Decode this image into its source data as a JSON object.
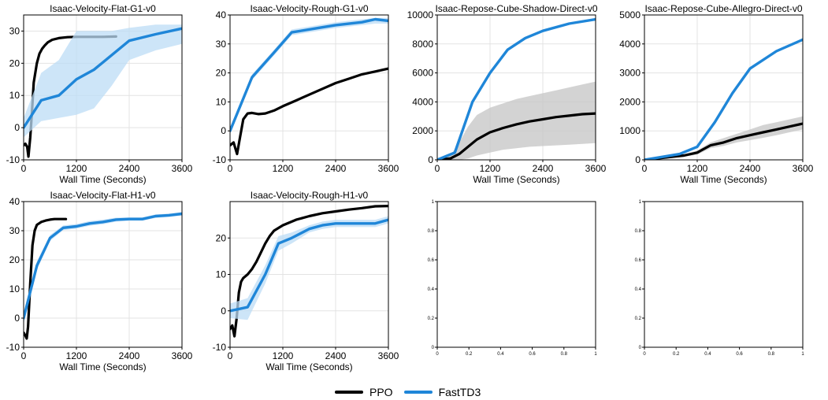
{
  "colors": {
    "ppo": "#000000",
    "fasttd3": "#1f86d8",
    "fasttd3_band": "#bcdcf5",
    "ppo_band": "#c8c8c8",
    "grid": "#e3e3e3"
  },
  "legend": [
    {
      "label": "PPO",
      "color": "#000000"
    },
    {
      "label": "FastTD3",
      "color": "#1f86d8"
    }
  ],
  "chart_data": [
    {
      "type": "line",
      "title": "Isaac-Velocity-Flat-G1-v0",
      "xlabel": "Wall Time (Seconds)",
      "xlim": [
        0,
        3600
      ],
      "ylim": [
        -10,
        35
      ],
      "xticks": [
        0,
        1200,
        2400,
        3600
      ],
      "yticks": [
        -10,
        0,
        10,
        20,
        30
      ],
      "series": [
        {
          "name": "PPO",
          "x": [
            0,
            40,
            80,
            110,
            150,
            190,
            230,
            300,
            360,
            420,
            480,
            550,
            650,
            800,
            1000,
            1200,
            1500,
            1800,
            2100
          ],
          "y": [
            -5.5,
            -5,
            -6,
            -9,
            -3,
            5,
            14,
            20,
            23,
            24.5,
            25.5,
            26.5,
            27.3,
            27.8,
            28.1,
            28.2,
            28.2,
            28.2,
            28.3
          ],
          "band_upper": [],
          "band_lower": []
        },
        {
          "name": "FastTD3",
          "x": [
            0,
            400,
            800,
            1200,
            1600,
            2000,
            2400,
            3000,
            3600
          ],
          "y": [
            0,
            8.5,
            10,
            15,
            18,
            22.5,
            27,
            29,
            30.8
          ],
          "band_upper": [
            3,
            17,
            21,
            30,
            30,
            30,
            31,
            32,
            32
          ],
          "band_lower": [
            -3,
            2,
            3,
            4,
            6,
            13,
            21,
            24,
            26
          ]
        }
      ]
    },
    {
      "type": "line",
      "title": "Isaac-Velocity-Rough-G1-v0",
      "xlabel": "",
      "xlim": [
        0,
        3600
      ],
      "ylim": [
        -10,
        40
      ],
      "xticks": [
        0,
        1200,
        2400,
        3600
      ],
      "yticks": [
        -10,
        0,
        10,
        20,
        30,
        40
      ],
      "series": [
        {
          "name": "PPO",
          "x": [
            0,
            80,
            160,
            230,
            300,
            400,
            500,
            650,
            800,
            1000,
            1200,
            1500,
            1800,
            2100,
            2400,
            2700,
            3000,
            3300,
            3600
          ],
          "y": [
            -5,
            -4,
            -8,
            -2,
            4,
            6,
            6.2,
            5.8,
            6,
            7,
            8.5,
            10.5,
            12.5,
            14.5,
            16.5,
            18,
            19.5,
            20.5,
            21.5
          ],
          "band_upper": [],
          "band_lower": []
        },
        {
          "name": "FastTD3",
          "x": [
            0,
            500,
            1000,
            1400,
            2000,
            2400,
            3000,
            3300,
            3600
          ],
          "y": [
            0,
            18.5,
            27,
            34,
            35.5,
            36.5,
            37.5,
            38.5,
            38
          ],
          "band_upper": [
            1,
            19.5,
            28,
            35,
            36.5,
            37.5,
            38.5,
            39,
            39
          ],
          "band_lower": [
            -1,
            17.5,
            26,
            33,
            34.5,
            35.5,
            36.5,
            37,
            37
          ]
        }
      ]
    },
    {
      "type": "line",
      "title": "Isaac-Repose-Cube-Shadow-Direct-v0",
      "xlabel": "Wall Time (Seconds)",
      "xlim": [
        0,
        3600
      ],
      "ylim": [
        0,
        10000
      ],
      "xticks": [
        0,
        1200,
        2400,
        3600
      ],
      "yticks": [
        0,
        2000,
        4000,
        6000,
        8000,
        10000
      ],
      "series": [
        {
          "name": "PPO",
          "x": [
            0,
            300,
            500,
            700,
            900,
            1200,
            1500,
            1800,
            2100,
            2400,
            2700,
            3000,
            3300,
            3600
          ],
          "y": [
            0,
            100,
            400,
            900,
            1400,
            1900,
            2200,
            2450,
            2650,
            2800,
            2950,
            3050,
            3150,
            3200
          ],
          "band_upper": [
            0,
            300,
            1200,
            2300,
            3100,
            3600,
            3900,
            4200,
            4400,
            4600,
            4800,
            5000,
            5200,
            5400
          ],
          "band_lower": [
            0,
            0,
            0,
            100,
            300,
            500,
            700,
            800,
            900,
            950,
            1000,
            1050,
            1100,
            1150
          ]
        },
        {
          "name": "FastTD3",
          "x": [
            0,
            400,
            800,
            1200,
            1600,
            2000,
            2400,
            3000,
            3600
          ],
          "y": [
            0,
            500,
            4000,
            6000,
            7600,
            8400,
            8900,
            9400,
            9700
          ],
          "band_upper": [],
          "band_lower": []
        }
      ]
    },
    {
      "type": "line",
      "title": "Isaac-Repose-Cube-Allegro-Direct-v0",
      "xlabel": "Wall Time (Seconds)",
      "xlim": [
        0,
        3600
      ],
      "ylim": [
        0,
        5000
      ],
      "xticks": [
        0,
        1200,
        2400,
        3600
      ],
      "yticks": [
        0,
        1000,
        2000,
        3000,
        4000,
        5000
      ],
      "series": [
        {
          "name": "PPO",
          "x": [
            0,
            300,
            600,
            900,
            1200,
            1500,
            1800,
            2100,
            2400,
            2700,
            3000,
            3300,
            3600
          ],
          "y": [
            0,
            50,
            100,
            150,
            250,
            500,
            600,
            750,
            850,
            950,
            1050,
            1150,
            1250
          ],
          "band_upper": [
            0,
            70,
            130,
            200,
            320,
            600,
            750,
            900,
            1050,
            1200,
            1300,
            1400,
            1500
          ],
          "band_lower": [
            0,
            30,
            70,
            110,
            180,
            400,
            480,
            600,
            680,
            760,
            850,
            950,
            1050
          ]
        },
        {
          "name": "FastTD3",
          "x": [
            0,
            400,
            800,
            1200,
            1600,
            2000,
            2400,
            3000,
            3600
          ],
          "y": [
            0,
            100,
            200,
            450,
            1300,
            2300,
            3150,
            3750,
            4150
          ],
          "band_upper": [],
          "band_lower": []
        }
      ]
    },
    {
      "type": "line",
      "title": "Isaac-Velocity-Flat-H1-v0",
      "xlabel": "Wall Time (Seconds)",
      "xlim": [
        0,
        3600
      ],
      "ylim": [
        -10,
        40
      ],
      "xticks": [
        0,
        1200,
        2400,
        3600
      ],
      "yticks": [
        -10,
        0,
        10,
        20,
        30,
        40
      ],
      "series": [
        {
          "name": "PPO",
          "x": [
            0,
            40,
            70,
            100,
            150,
            200,
            250,
            300,
            350,
            400,
            500,
            600,
            700,
            800,
            900,
            960
          ],
          "y": [
            -5,
            -6,
            -7,
            -3,
            12,
            25,
            30,
            32,
            32.5,
            33,
            33.5,
            33.8,
            34,
            34,
            34,
            34
          ],
          "band_upper": [],
          "band_lower": []
        },
        {
          "name": "FastTD3",
          "x": [
            0,
            300,
            600,
            900,
            1200,
            1500,
            1800,
            2100,
            2400,
            2700,
            3000,
            3300,
            3600
          ],
          "y": [
            0,
            18,
            27.5,
            31,
            31.5,
            32.5,
            33,
            33.8,
            34,
            34,
            35,
            35.3,
            35.8
          ],
          "band_upper": [
            2,
            19.5,
            28.5,
            31.8,
            32.3,
            33.3,
            33.8,
            34.5,
            34.6,
            34.6,
            35.6,
            35.9,
            36.4
          ],
          "band_lower": [
            -2,
            16.5,
            26.5,
            30.2,
            30.7,
            31.7,
            32.2,
            33.1,
            33.4,
            33.4,
            34.4,
            34.7,
            35.2
          ]
        }
      ]
    },
    {
      "type": "line",
      "title": "Isaac-Velocity-Rough-H1-v0",
      "xlabel": "Wall Time (Seconds)",
      "xlim": [
        0,
        3600
      ],
      "ylim": [
        -10,
        30
      ],
      "xticks": [
        0,
        1200,
        2400,
        3600
      ],
      "yticks": [
        -10,
        0,
        10,
        20
      ],
      "series": [
        {
          "name": "PPO",
          "x": [
            0,
            50,
            100,
            150,
            200,
            250,
            300,
            400,
            500,
            600,
            700,
            800,
            900,
            1000,
            1200,
            1500,
            1800,
            2100,
            2400,
            2700,
            3000,
            3300,
            3600
          ],
          "y": [
            -5,
            -4,
            -7,
            -2,
            5,
            8,
            9,
            10,
            11.5,
            13.5,
            16,
            18.5,
            20.5,
            22,
            23.5,
            25,
            26,
            26.8,
            27.3,
            27.8,
            28.2,
            28.7,
            28.8
          ],
          "band_upper": [],
          "band_lower": []
        },
        {
          "name": "FastTD3",
          "x": [
            0,
            400,
            800,
            1100,
            1400,
            1800,
            2100,
            2400,
            3000,
            3300,
            3600
          ],
          "y": [
            0,
            1,
            10,
            18.5,
            20,
            22.5,
            23.5,
            24,
            24,
            24,
            25
          ],
          "band_upper": [
            2,
            3.5,
            12.5,
            20.5,
            21.5,
            23.5,
            24.5,
            25,
            25,
            25,
            26
          ],
          "band_lower": [
            -2,
            -2.5,
            7.5,
            16.5,
            18.5,
            21.5,
            22.5,
            23,
            23,
            23,
            24
          ]
        }
      ]
    },
    {
      "type": "line",
      "title": "",
      "xlabel": "",
      "xlim": [
        0,
        1
      ],
      "ylim": [
        0,
        1
      ],
      "xticks": [
        0,
        0.2,
        0.4,
        0.6,
        0.8,
        1.0
      ],
      "yticks": [
        0,
        0.2,
        0.4,
        0.6,
        0.8,
        1.0
      ],
      "series": []
    },
    {
      "type": "line",
      "title": "",
      "xlabel": "",
      "xlim": [
        0,
        1
      ],
      "ylim": [
        0,
        1
      ],
      "xticks": [
        0,
        0.2,
        0.4,
        0.6,
        0.8,
        1.0
      ],
      "yticks": [
        0,
        0.2,
        0.4,
        0.6,
        0.8,
        1.0
      ],
      "series": []
    }
  ]
}
